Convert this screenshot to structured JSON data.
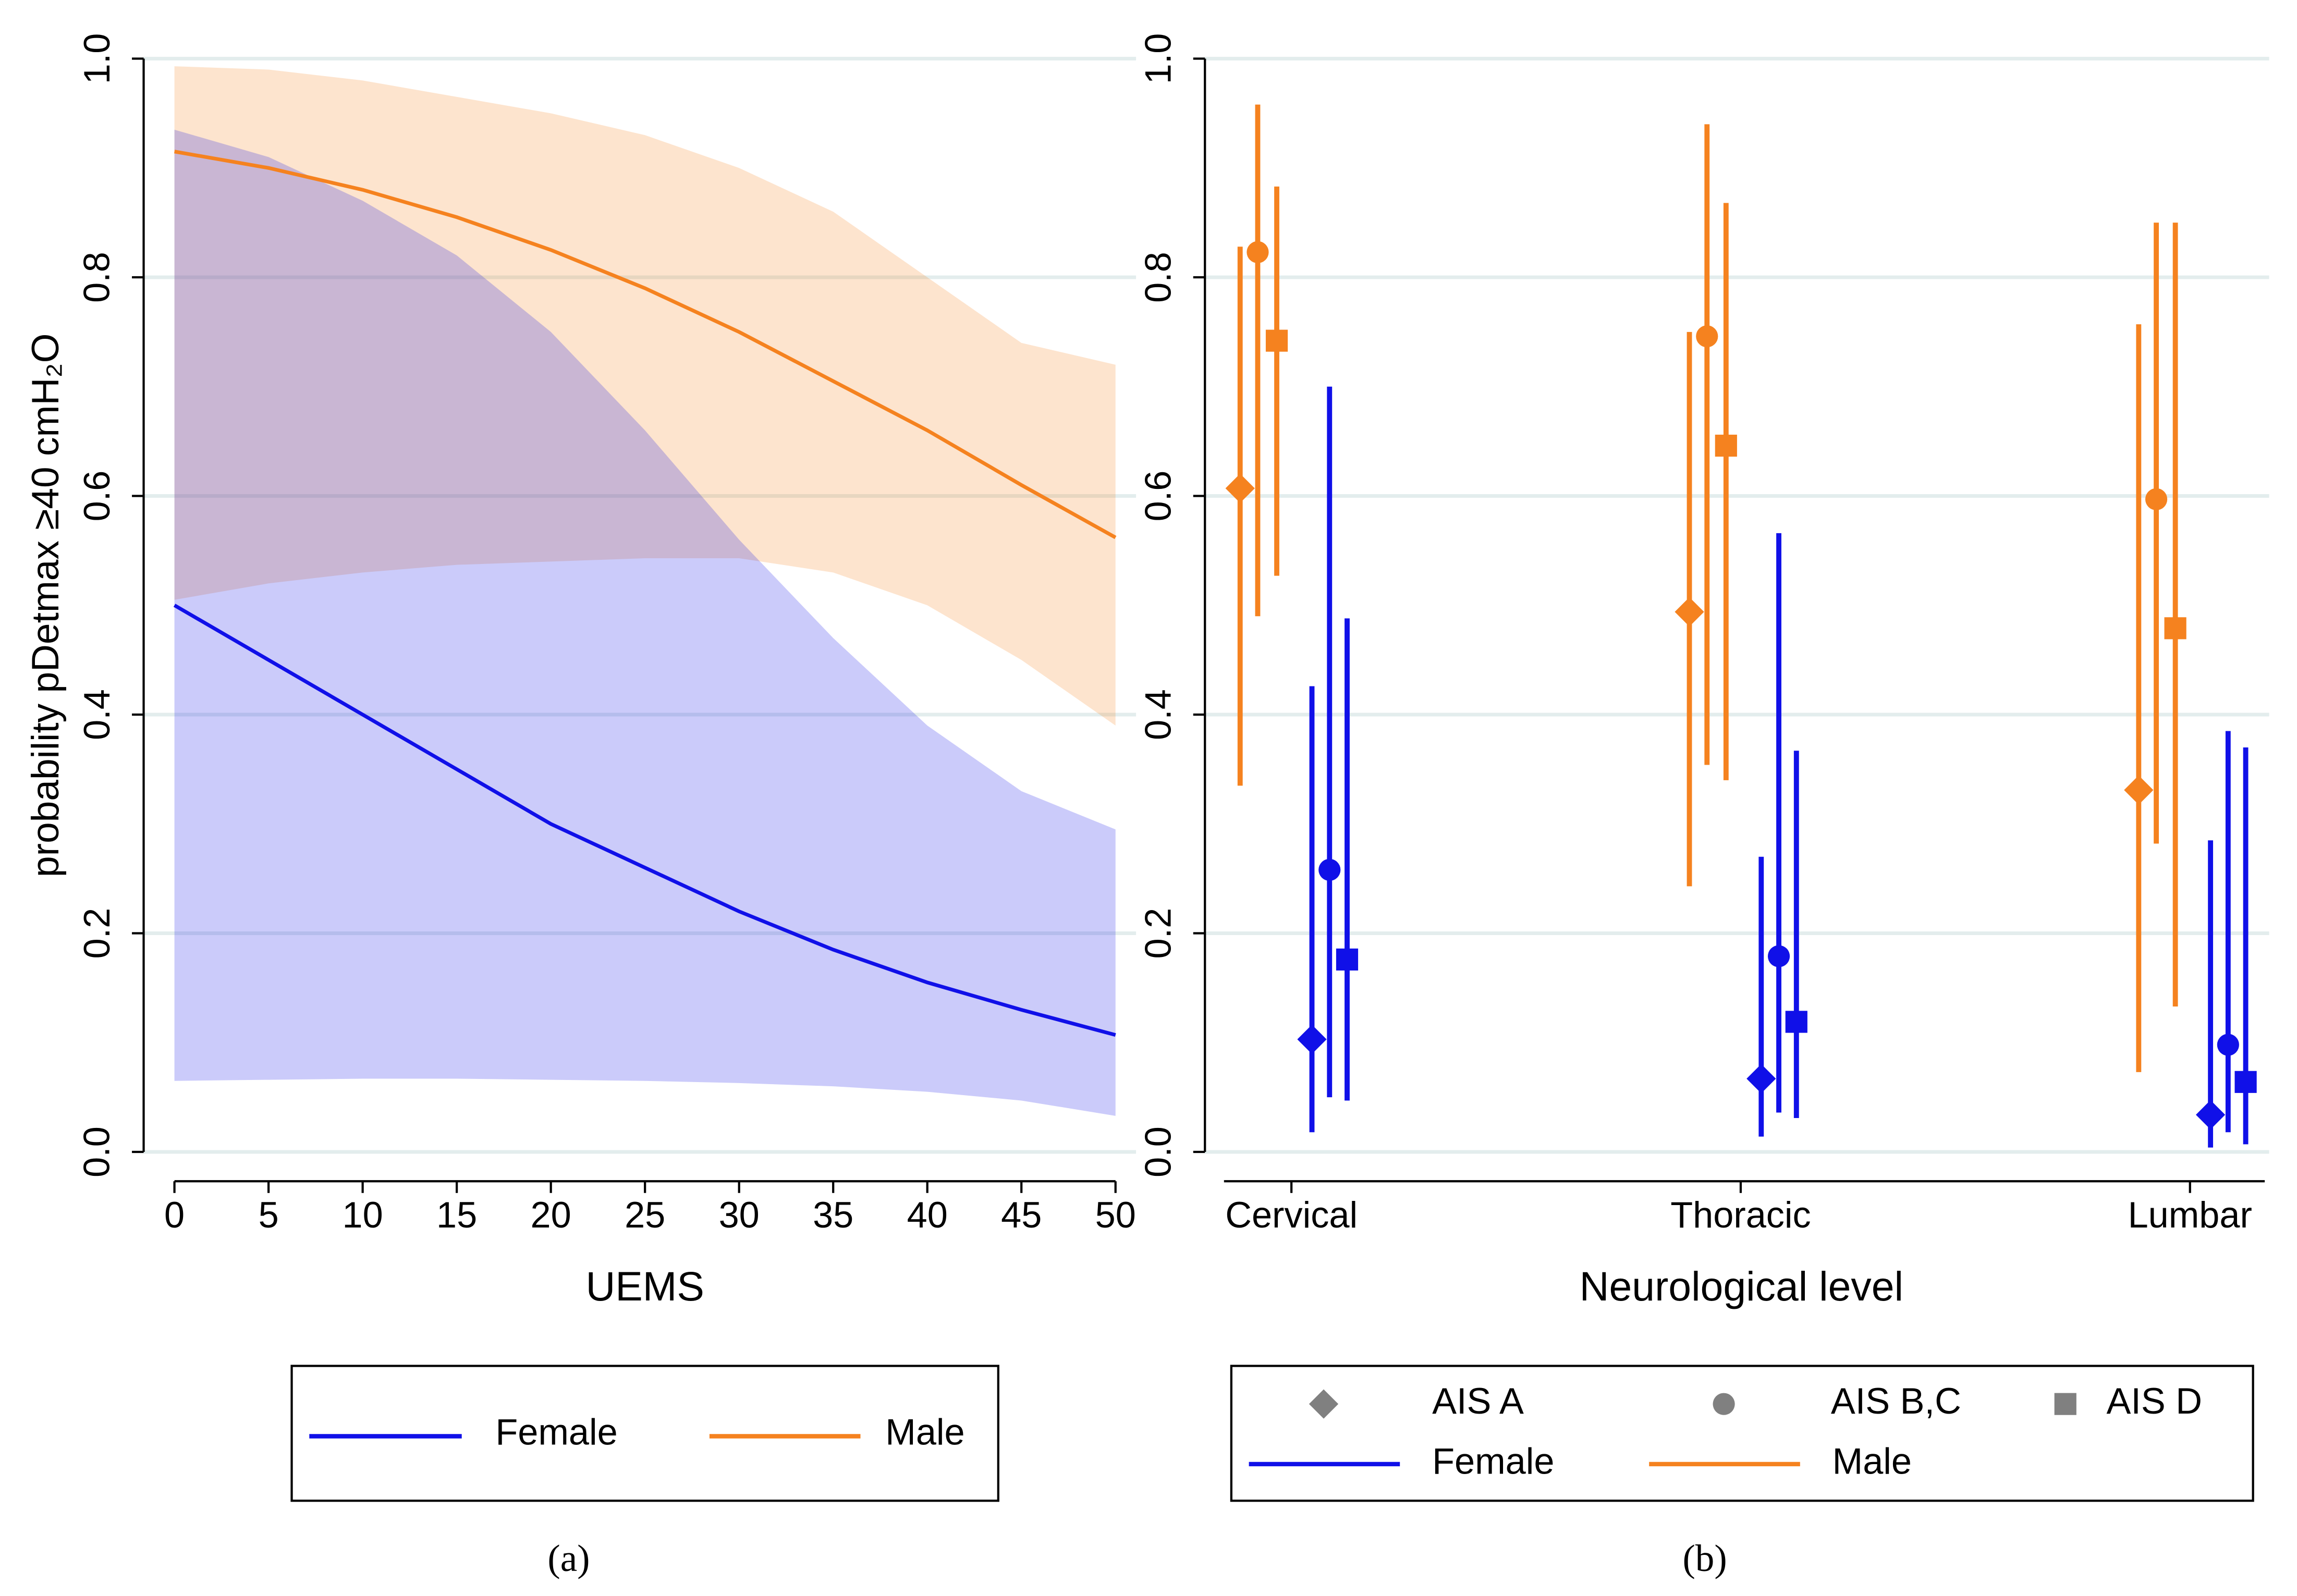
{
  "chart_data": [
    {
      "type": "line",
      "caption": "(a)",
      "xlabel": "UEMS",
      "ylabel": "probability pDetmax ≥40 cmH₂O",
      "x": [
        0,
        5,
        10,
        15,
        20,
        25,
        30,
        35,
        40,
        45,
        50
      ],
      "xlim": [
        0,
        50
      ],
      "xticks": [
        0,
        5,
        10,
        15,
        20,
        25,
        30,
        35,
        40,
        45,
        50
      ],
      "ylim": [
        0,
        1
      ],
      "yticks": [
        {
          "value": 0,
          "label": "0.0"
        },
        {
          "value": 0.2,
          "label": "0.2"
        },
        {
          "value": 0.4,
          "label": "0.4"
        },
        {
          "value": 0.6,
          "label": "0.6"
        },
        {
          "value": 0.8,
          "label": "0.8"
        },
        {
          "value": 1,
          "label": "1.0"
        }
      ],
      "grid": true,
      "legend": "bottom",
      "series": [
        {
          "name": "Female",
          "color": "#1010e8",
          "values": [
            0.5,
            0.45,
            0.4,
            0.35,
            0.3,
            0.26,
            0.22,
            0.185,
            0.155,
            0.13,
            0.107
          ],
          "lower": [
            0.065,
            0.066,
            0.067,
            0.067,
            0.066,
            0.065,
            0.063,
            0.06,
            0.055,
            0.047,
            0.033
          ],
          "upper": [
            0.935,
            0.91,
            0.87,
            0.82,
            0.75,
            0.66,
            0.56,
            0.47,
            0.39,
            0.33,
            0.295
          ]
        },
        {
          "name": "Male",
          "color": "#f5821f",
          "values": [
            0.915,
            0.9,
            0.88,
            0.855,
            0.825,
            0.79,
            0.75,
            0.705,
            0.66,
            0.61,
            0.562
          ],
          "lower": [
            0.505,
            0.52,
            0.53,
            0.537,
            0.54,
            0.543,
            0.543,
            0.53,
            0.5,
            0.45,
            0.39
          ],
          "upper": [
            0.993,
            0.99,
            0.98,
            0.965,
            0.95,
            0.93,
            0.9,
            0.86,
            0.8,
            0.74,
            0.72
          ]
        }
      ]
    },
    {
      "type": "dot",
      "caption": "(b)",
      "xlabel": "Neurological level",
      "categories": [
        "Cervical",
        "Thoracic",
        "Lumbar"
      ],
      "ylim": [
        0,
        1
      ],
      "yticks": [
        {
          "value": 0,
          "label": "0.0"
        },
        {
          "value": 0.2,
          "label": "0.2"
        },
        {
          "value": 0.4,
          "label": "0.4"
        },
        {
          "value": 0.6,
          "label": "0.6"
        },
        {
          "value": 0.8,
          "label": "0.8"
        },
        {
          "value": 1,
          "label": "1.0"
        }
      ],
      "grid": true,
      "legend": "bottom",
      "markers": [
        {
          "name": "AIS A",
          "shape": "diamond"
        },
        {
          "name": "AIS B,C",
          "shape": "circle"
        },
        {
          "name": "AIS D",
          "shape": "square"
        }
      ],
      "groups": [
        {
          "name": "Female",
          "color": "#1010e8",
          "series": [
            {
              "values": [
                0.103,
                0.067,
                0.034
              ],
              "lower": [
                0.018,
                0.014,
                0.004
              ],
              "upper": [
                0.426,
                0.27,
                0.285
              ]
            },
            {
              "values": [
                0.258,
                0.179,
                0.098
              ],
              "lower": [
                0.05,
                0.036,
                0.018
              ],
              "upper": [
                0.7,
                0.566,
                0.385
              ]
            },
            {
              "values": [
                0.176,
                0.119,
                0.064
              ],
              "lower": [
                0.047,
                0.031,
                0.007
              ],
              "upper": [
                0.488,
                0.367,
                0.37
              ]
            }
          ]
        },
        {
          "name": "Male",
          "color": "#f5821f",
          "series": [
            {
              "values": [
                0.607,
                0.494,
                0.331
              ],
              "lower": [
                0.335,
                0.243,
                0.073
              ],
              "upper": [
                0.828,
                0.75,
                0.757
              ]
            },
            {
              "values": [
                0.823,
                0.746,
                0.597
              ],
              "lower": [
                0.49,
                0.354,
                0.282
              ],
              "upper": [
                0.958,
                0.94,
                0.85
              ]
            },
            {
              "values": [
                0.742,
                0.646,
                0.479
              ],
              "lower": [
                0.527,
                0.34,
                0.133
              ],
              "upper": [
                0.883,
                0.868,
                0.85
              ]
            }
          ]
        }
      ]
    }
  ]
}
